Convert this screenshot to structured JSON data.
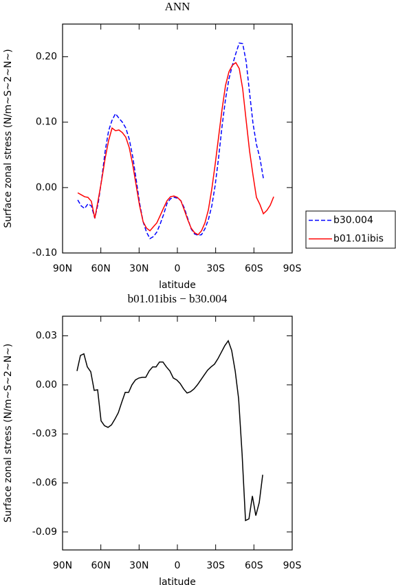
{
  "chart_data": [
    {
      "type": "line",
      "title": "ANN",
      "xlabel": "latitude",
      "ylabel": "Surface zonal stress (N/m~S~2~N~)",
      "x": [
        78.1,
        75.4,
        72.7,
        70.1,
        67.4,
        64.7,
        62.0,
        59.3,
        56.6,
        53.9,
        51.2,
        48.5,
        45.8,
        43.1,
        40.4,
        37.7,
        35.0,
        32.3,
        29.6,
        26.9,
        24.2,
        21.5,
        18.8,
        16.1,
        13.5,
        10.8,
        8.1,
        5.4,
        2.7,
        0.0,
        -2.7,
        -5.4,
        -8.1,
        -10.8,
        -13.5,
        -16.2,
        -18.9,
        -21.6,
        -24.3,
        -27.0,
        -29.6,
        -32.3,
        -35.0,
        -37.7,
        -40.4,
        -43.1,
        -45.8,
        -48.5,
        -51.2,
        -53.9,
        -56.6,
        -59.3,
        -62.0,
        -64.7,
        -67.4,
        -70.1,
        -72.8,
        -75.5
      ],
      "series": [
        {
          "name": "b30.004",
          "color": "#0000ff",
          "style": "dashed",
          "values": [
            -0.019,
            -0.028,
            -0.032,
            -0.025,
            -0.028,
            -0.047,
            -0.023,
            0.014,
            0.056,
            0.087,
            0.103,
            0.113,
            0.106,
            0.1,
            0.091,
            0.074,
            0.047,
            0.012,
            -0.024,
            -0.052,
            -0.068,
            -0.078,
            -0.075,
            -0.068,
            -0.056,
            -0.041,
            -0.024,
            -0.017,
            -0.015,
            -0.016,
            -0.02,
            -0.031,
            -0.047,
            -0.063,
            -0.071,
            -0.073,
            -0.072,
            -0.063,
            -0.049,
            -0.028,
            0.003,
            0.045,
            0.093,
            0.135,
            0.166,
            0.187,
            0.205,
            0.221,
            0.22,
            0.193,
            0.145,
            0.098,
            0.066,
            0.045,
            0.014,
            null,
            null,
            null
          ]
        },
        {
          "name": "b01.01ibis",
          "color": "#ff0000",
          "style": "solid",
          "values": [
            -0.008,
            -0.011,
            -0.014,
            -0.015,
            -0.021,
            -0.047,
            -0.018,
            0.012,
            0.045,
            0.072,
            0.091,
            0.087,
            0.088,
            0.084,
            0.077,
            0.061,
            0.035,
            0.003,
            -0.028,
            -0.052,
            -0.062,
            -0.066,
            -0.06,
            -0.054,
            -0.043,
            -0.031,
            -0.02,
            -0.014,
            -0.013,
            -0.015,
            -0.02,
            -0.034,
            -0.049,
            -0.062,
            -0.069,
            -0.072,
            -0.066,
            -0.054,
            -0.034,
            -0.002,
            0.035,
            0.077,
            0.119,
            0.156,
            0.177,
            0.187,
            0.191,
            0.182,
            0.151,
            0.103,
            0.056,
            0.019,
            -0.015,
            -0.026,
            -0.04,
            -0.035,
            -0.027,
            -0.014
          ]
        }
      ],
      "xlim": [
        90,
        -90
      ],
      "xticks": [
        {
          "value": 90,
          "label": "90N"
        },
        {
          "value": 60,
          "label": "60N"
        },
        {
          "value": 30,
          "label": "30N"
        },
        0,
        {
          "value": -30,
          "label": "30S"
        },
        {
          "value": -60,
          "label": "60S"
        },
        {
          "value": -90,
          "label": "90S"
        }
      ],
      "ylim": [
        -0.1,
        0.25
      ],
      "yticks": [
        {
          "value": -0.1,
          "label": "-0.10"
        },
        {
          "value": 0,
          "label": "0.00"
        },
        {
          "value": 0.1,
          "label": "0.10"
        },
        {
          "value": 0.2,
          "label": "0.20"
        }
      ],
      "legend": "right"
    },
    {
      "type": "line",
      "title": "b01.01ibis − b30.004",
      "xlabel": "latitude",
      "ylabel": "Surface zonal stress (N/m~S~2~N~)",
      "x": [
        78.7,
        76.0,
        73.3,
        70.6,
        67.9,
        65.2,
        62.5,
        59.8,
        57.1,
        54.4,
        51.7,
        49.0,
        46.3,
        43.6,
        40.9,
        38.2,
        35.6,
        32.9,
        30.2,
        27.5,
        24.8,
        22.1,
        19.4,
        16.7,
        14.0,
        11.3,
        8.6,
        5.9,
        3.2,
        0.5,
        -2.2,
        -4.9,
        -7.6,
        -10.3,
        -13.0,
        -15.7,
        -18.4,
        -21.0,
        -23.7,
        -26.4,
        -29.1,
        -31.8,
        -34.5,
        -37.2,
        -39.9,
        -42.6,
        -45.3,
        -48.0,
        -50.7,
        -53.4,
        -56.1,
        -58.8,
        -61.5,
        -64.2,
        -66.9
      ],
      "series": [
        {
          "color": "#000000",
          "style": "solid",
          "values": [
            0.0085,
            0.018,
            0.019,
            0.011,
            0.008,
            -0.0034,
            -0.003,
            -0.022,
            -0.025,
            -0.026,
            -0.0245,
            -0.021,
            -0.017,
            -0.0106,
            -0.0046,
            -0.0046,
            0.0,
            0.003,
            0.0042,
            0.0046,
            0.0046,
            0.0085,
            0.011,
            0.011,
            0.014,
            0.014,
            0.011,
            0.0085,
            0.0042,
            0.003,
            0.0008,
            -0.0025,
            -0.005,
            -0.0042,
            -0.0025,
            0.0,
            0.003,
            0.006,
            0.009,
            0.011,
            0.0127,
            0.016,
            0.02,
            0.024,
            0.027,
            0.021,
            0.0085,
            -0.0085,
            -0.042,
            -0.083,
            -0.082,
            -0.068,
            -0.08,
            -0.072,
            -0.055
          ]
        }
      ],
      "xlim": [
        90,
        -90
      ],
      "xticks": [
        {
          "value": 90,
          "label": "90N"
        },
        {
          "value": 60,
          "label": "60N"
        },
        {
          "value": 30,
          "label": "30N"
        },
        0,
        {
          "value": -30,
          "label": "30S"
        },
        {
          "value": -60,
          "label": "60S"
        },
        {
          "value": -90,
          "label": "90S"
        }
      ],
      "ylim": [
        -0.101,
        0.042
      ],
      "yticks": [
        -0.09,
        -0.06,
        -0.03,
        {
          "value": 0,
          "label": "0.00"
        },
        0.03
      ]
    }
  ]
}
